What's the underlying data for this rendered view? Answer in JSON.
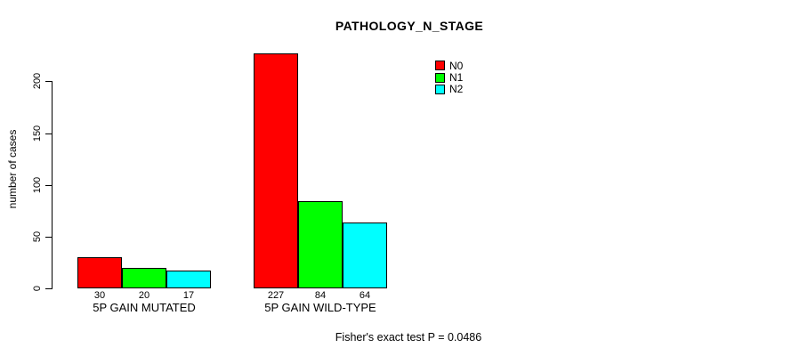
{
  "chart_data": {
    "type": "bar",
    "title": "PATHOLOGY_N_STAGE",
    "ylabel": "number of cases",
    "xlabel": "",
    "yticks": [
      0,
      50,
      100,
      150,
      200
    ],
    "ylim": [
      0,
      227
    ],
    "grid": false,
    "legend_position": "top-right",
    "categories": [
      "5P GAIN MUTATED",
      "5P GAIN WILD-TYPE"
    ],
    "series": [
      {
        "name": "N0",
        "color": "#FF0000",
        "values": [
          30,
          227
        ]
      },
      {
        "name": "N1",
        "color": "#00FF00",
        "values": [
          20,
          84
        ]
      },
      {
        "name": "N2",
        "color": "#00FFFF",
        "values": [
          17,
          64
        ]
      }
    ],
    "bar_value_labels": [
      [
        30,
        20,
        17
      ],
      [
        227,
        84,
        64
      ]
    ],
    "annotation": "Fisher's exact test P = 0.0486",
    "axis_color": "#000000",
    "background_color": "#FFFFFF"
  }
}
